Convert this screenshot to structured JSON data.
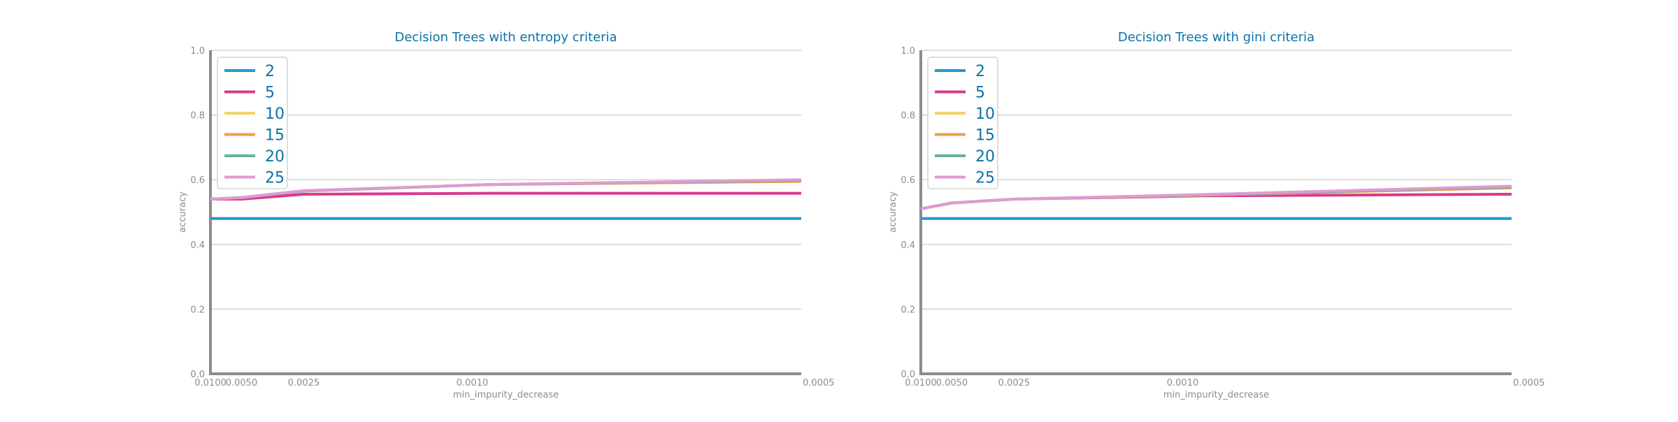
{
  "chart_data": [
    {
      "type": "line",
      "title": "Decision Trees with entropy criteria",
      "xlabel": "min_impurity_decrease",
      "ylabel": "accuracy",
      "x": [
        0.01,
        0.005,
        0.0025,
        0.001,
        0.0005
      ],
      "x_tick_labels": [
        "0.0100",
        "0.0050",
        "0.0025",
        "0.0010",
        "0.0005"
      ],
      "x_scale": "reciprocal",
      "ylim": [
        0.0,
        1.0
      ],
      "y_ticks": [
        "0.0",
        "0.2",
        "0.4",
        "0.6",
        "0.8",
        "1.0"
      ],
      "grid": "horizontal",
      "legend_placement": "top-left",
      "series": [
        {
          "name": "2",
          "color": "#1f9bd1",
          "values": [
            0.48,
            0.48,
            0.48,
            0.48,
            0.48
          ]
        },
        {
          "name": "5",
          "color": "#d9398f",
          "values": [
            0.54,
            0.54,
            0.555,
            0.558,
            0.558
          ]
        },
        {
          "name": "10",
          "color": "#f2d36b",
          "values": [
            0.54,
            0.545,
            0.565,
            0.585,
            0.595
          ]
        },
        {
          "name": "15",
          "color": "#f0a04b",
          "values": [
            0.54,
            0.545,
            0.565,
            0.585,
            0.595
          ]
        },
        {
          "name": "20",
          "color": "#5fb49c",
          "values": [
            0.54,
            0.545,
            0.565,
            0.585,
            0.598
          ]
        },
        {
          "name": "25",
          "color": "#e09ad2",
          "values": [
            0.54,
            0.545,
            0.566,
            0.585,
            0.6
          ]
        }
      ]
    },
    {
      "type": "line",
      "title": "Decision Trees with gini criteria",
      "xlabel": "min_impurity_decrease",
      "ylabel": "accuracy",
      "x": [
        0.01,
        0.005,
        0.0025,
        0.001,
        0.0005
      ],
      "x_tick_labels": [
        "0.0100",
        "0.0050",
        "0.0025",
        "0.0010",
        "0.0005"
      ],
      "x_scale": "reciprocal",
      "ylim": [
        0.0,
        1.0
      ],
      "y_ticks": [
        "0.0",
        "0.2",
        "0.4",
        "0.6",
        "0.8",
        "1.0"
      ],
      "grid": "horizontal",
      "legend_placement": "top-left",
      "series": [
        {
          "name": "2",
          "color": "#1f9bd1",
          "values": [
            0.48,
            0.48,
            0.48,
            0.48,
            0.48
          ]
        },
        {
          "name": "5",
          "color": "#d9398f",
          "values": [
            0.51,
            0.528,
            0.54,
            0.55,
            0.555
          ]
        },
        {
          "name": "10",
          "color": "#f2d36b",
          "values": [
            0.51,
            0.528,
            0.54,
            0.552,
            0.575
          ]
        },
        {
          "name": "15",
          "color": "#f0a04b",
          "values": [
            0.51,
            0.528,
            0.54,
            0.552,
            0.575
          ]
        },
        {
          "name": "20",
          "color": "#5fb49c",
          "values": [
            0.51,
            0.528,
            0.54,
            0.553,
            0.578
          ]
        },
        {
          "name": "25",
          "color": "#e09ad2",
          "values": [
            0.51,
            0.528,
            0.54,
            0.554,
            0.58
          ]
        }
      ]
    }
  ]
}
